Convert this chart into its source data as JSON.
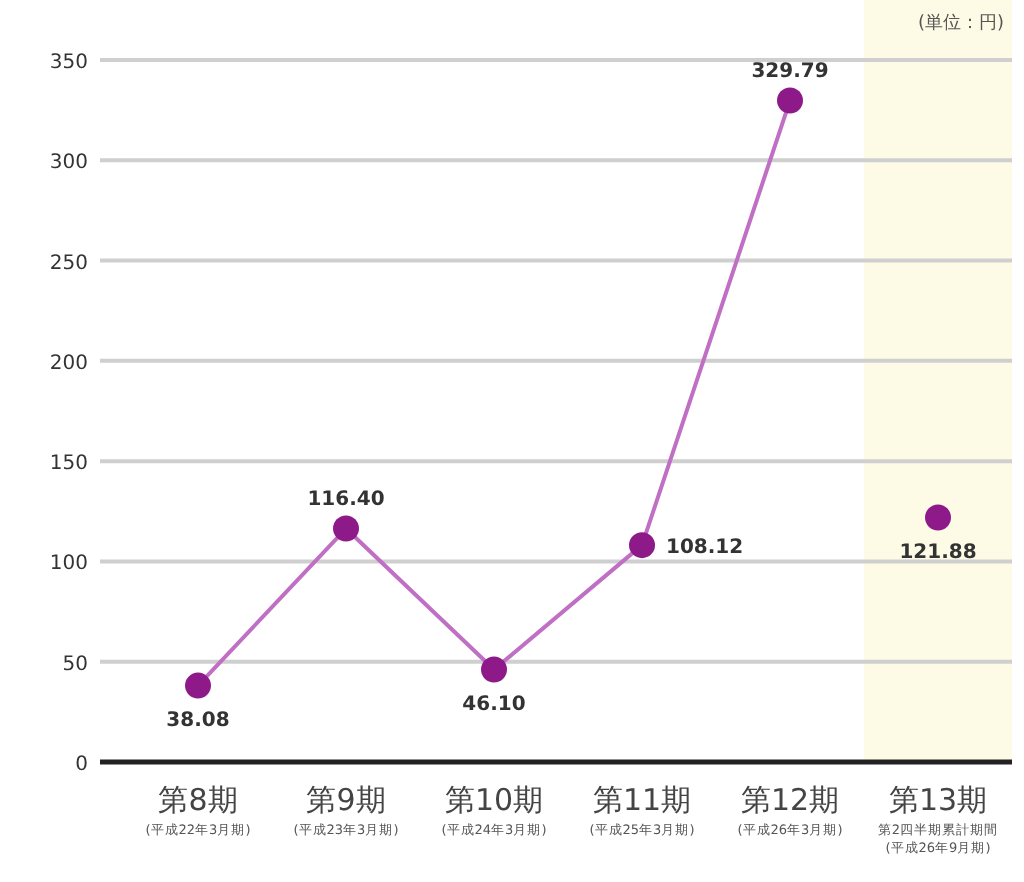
{
  "chart_data": {
    "type": "line",
    "categories": [
      "第8期",
      "第9期",
      "第10期",
      "第11期",
      "第12期",
      "第13期"
    ],
    "series": [
      {
        "color": "#8e1a8a",
        "values": [
          38.08,
          116.4,
          46.1,
          108.12,
          329.79,
          null
        ],
        "value_labels": [
          "38.08",
          "116.40",
          "46.10",
          "108.12",
          "329.79",
          null
        ]
      },
      {
        "type": "scatter",
        "color": "#8e1a8a",
        "values": [
          null,
          null,
          null,
          null,
          null,
          121.88
        ],
        "value_labels": [
          null,
          null,
          null,
          null,
          null,
          "121.88"
        ]
      }
    ],
    "ylim": [
      0,
      350
    ],
    "yticks": [
      0,
      50,
      100,
      150,
      200,
      250,
      300,
      350
    ],
    "grid": "y",
    "marker": "circle",
    "bands": [
      {
        "axis": "x",
        "from": "第13期",
        "to": "第13期",
        "color": "#fdfbe6"
      }
    ],
    "annotations": [
      "(単位：円)",
      "(平成22年3月期)",
      "(平成23年3月期)",
      "(平成24年3月期)",
      "(平成25年3月期)",
      "(平成26年3月期)",
      "第2四半期累計期間(平成26年9月期)"
    ]
  }
}
